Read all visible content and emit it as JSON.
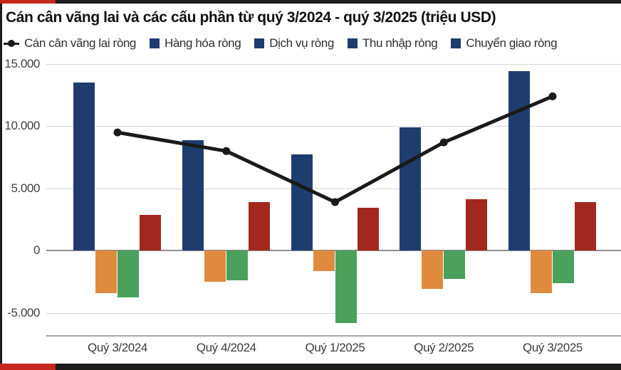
{
  "page": {
    "title": "Cán cân vãng lai và các cấu phần từ quý 3/2024 - quý 3/2025 (triệu USD)"
  },
  "colors": {
    "accent_red": "#c5271e",
    "accent_black": "#1d1d1b",
    "navy": "#1e3d6e",
    "orange": "#e08a3e",
    "green": "#4aa15c",
    "dark_red": "#a2281f",
    "line_black": "#1a1a1a",
    "legend_swatch": "#1e3d6e"
  },
  "chart_data": {
    "type": "bar+line",
    "title": "Cán cân vãng lai và các cấu phần từ quý 3/2024 - quý 3/2025 (triệu USD)",
    "unit": "triệu USD",
    "categories": [
      "Quý 3/2024",
      "Quý 4/2024",
      "Quý 1/2025",
      "Quý 2/2025",
      "Quý 3/2025"
    ],
    "series": [
      {
        "name": "Cán cân vãng lai ròng",
        "key": "can-can-vang-lai-rong",
        "type": "line",
        "color": "#1a1a1a",
        "values": [
          9500,
          8000,
          3900,
          8700,
          12400
        ]
      },
      {
        "name": "Hàng hóa ròng",
        "key": "hang-hoa-rong",
        "type": "bar",
        "color": "#1e3d6e",
        "values": [
          13500,
          8900,
          7750,
          9900,
          14400
        ]
      },
      {
        "name": "Dịch vụ ròng",
        "key": "dich-vu-rong",
        "type": "bar",
        "color": "#e08a3e",
        "values": [
          -3400,
          -2500,
          -1650,
          -3100,
          -3400
        ]
      },
      {
        "name": "Thu nhập ròng",
        "key": "thu-nhap-rong",
        "type": "bar",
        "color": "#4aa15c",
        "values": [
          -3750,
          -2400,
          -5850,
          -2300,
          -2650
        ]
      },
      {
        "name": "Chuyển giao ròng",
        "key": "chuyen-giao-rong",
        "type": "bar",
        "color": "#a2281f",
        "values": [
          2850,
          3900,
          3450,
          4150,
          3900
        ]
      }
    ],
    "y_ticks": [
      15000,
      10000,
      5000,
      0,
      -5000
    ],
    "y_tick_labels": [
      "15.000",
      "10.000",
      "5.000",
      "0",
      "-5.000"
    ],
    "ylim": [
      -6800,
      15000
    ],
    "grid": true,
    "legend_position": "top"
  }
}
